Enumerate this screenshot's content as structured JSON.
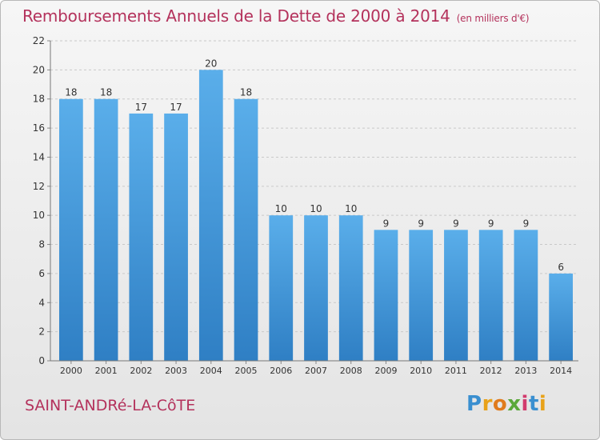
{
  "chart_data": {
    "type": "bar",
    "title": "Remboursements Annuels de la Dette de 2000 à 2014",
    "subtitle": "(en milliers d'€)",
    "categories": [
      "2000",
      "2001",
      "2002",
      "2003",
      "2004",
      "2005",
      "2006",
      "2007",
      "2008",
      "2009",
      "2010",
      "2011",
      "2012",
      "2013",
      "2014"
    ],
    "values": [
      18,
      18,
      17,
      17,
      20,
      18,
      10,
      10,
      10,
      9,
      9,
      9,
      9,
      9,
      6
    ],
    "ylim": [
      0,
      22
    ],
    "yticks": [
      0,
      2,
      4,
      6,
      8,
      10,
      12,
      14,
      16,
      18,
      20,
      22
    ],
    "xlabel": "",
    "ylabel": "",
    "grid": true,
    "bar_color": "#4a9de0"
  },
  "footer": {
    "commune": "SAINT-ANDRé-LA-CôTE",
    "brand": "Proxiti"
  }
}
